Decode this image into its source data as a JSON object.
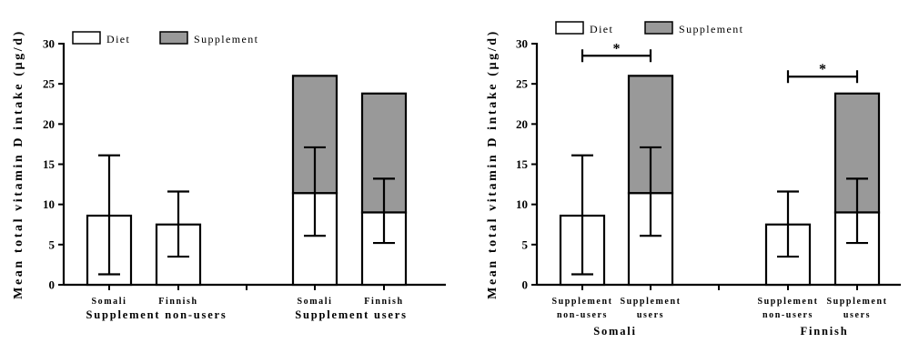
{
  "colors": {
    "diet": "#ffffff",
    "supplement": "#999999",
    "stroke": "#000000"
  },
  "chart_data": [
    {
      "type": "bar",
      "stacked": true,
      "title": "",
      "ylabel": "Mean total vitamin D intake (µg/d)",
      "ylim": [
        0,
        30
      ],
      "yticks": [
        "0",
        "5",
        "10",
        "15",
        "20",
        "25",
        "30"
      ],
      "legend": [
        "Diet",
        "Supplement"
      ],
      "legend_position": "top-left",
      "categories": [
        {
          "label": "Somali",
          "group": 0
        },
        {
          "label": "Finnish",
          "group": 0
        },
        {
          "label": "Somali",
          "group": 1
        },
        {
          "label": "Finnish",
          "group": 1
        }
      ],
      "groups": [
        "Supplement non-users",
        "Supplement users"
      ],
      "series": [
        {
          "name": "Diet",
          "values": [
            8.6,
            7.5,
            11.4,
            9.0
          ],
          "error": [
            [
              1.3,
              16.1
            ],
            [
              3.5,
              11.6
            ],
            [
              6.1,
              17.1
            ],
            [
              5.2,
              13.2
            ]
          ]
        },
        {
          "name": "Supplement",
          "values": [
            0,
            0,
            14.6,
            14.8
          ]
        }
      ],
      "significance": []
    },
    {
      "type": "bar",
      "stacked": true,
      "title": "",
      "ylabel": "Mean total vitamin D intake (µg/d)",
      "ylim": [
        0,
        30
      ],
      "yticks": [
        "0",
        "5",
        "10",
        "15",
        "20",
        "25",
        "30"
      ],
      "legend": [
        "Diet",
        "Supplement"
      ],
      "legend_position": "top-left",
      "categories": [
        {
          "label": [
            "Supplement",
            "non-users"
          ],
          "group": 0
        },
        {
          "label": [
            "Supplement",
            "users"
          ],
          "group": 0
        },
        {
          "label": [
            "Supplement",
            "non-users"
          ],
          "group": 1
        },
        {
          "label": [
            "Supplement",
            "users"
          ],
          "group": 1
        }
      ],
      "groups": [
        "Somali",
        "Finnish"
      ],
      "series": [
        {
          "name": "Diet",
          "values": [
            8.6,
            11.4,
            7.5,
            9.0
          ],
          "error": [
            [
              1.3,
              16.1
            ],
            [
              6.1,
              17.1
            ],
            [
              3.5,
              11.6
            ],
            [
              5.2,
              13.2
            ]
          ]
        },
        {
          "name": "Supplement",
          "values": [
            0,
            14.6,
            0,
            14.8
          ]
        }
      ],
      "significance": [
        {
          "from": 0,
          "to": 1,
          "y": 28.5,
          "label": "*"
        },
        {
          "from": 2,
          "to": 3,
          "y": 25.9,
          "label": "*"
        }
      ]
    }
  ]
}
